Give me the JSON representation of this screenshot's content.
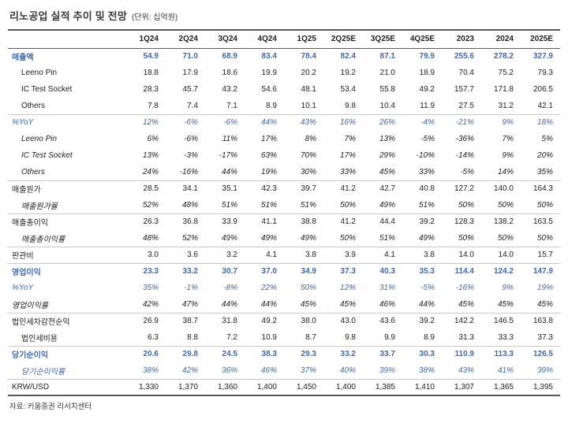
{
  "header": {
    "title": "리노공업 실적 추이 및 전망",
    "unit": "(단위: 십억원)"
  },
  "colors": {
    "accent_blue": "#4169A8",
    "border_dark": "#595959",
    "border_light": "#C9C9C9"
  },
  "table": {
    "columns": [
      "",
      "1Q24",
      "2Q24",
      "3Q24",
      "4Q24",
      "1Q25",
      "2Q25E",
      "3Q25E",
      "4Q25E",
      "2023",
      "2024",
      "2025E"
    ],
    "rows": [
      {
        "label": "매출액",
        "color": "blue",
        "bold": true,
        "indent": false,
        "italic": false,
        "border": null,
        "values": [
          "54.9",
          "71.0",
          "68.9",
          "83.4",
          "78.4",
          "82.4",
          "87.1",
          "79.9",
          "255.6",
          "278.2",
          "327.9"
        ]
      },
      {
        "label": "Leeno Pin",
        "color": "black",
        "bold": false,
        "indent": true,
        "italic": false,
        "border": null,
        "values": [
          "18.8",
          "17.9",
          "18.6",
          "19.9",
          "20.2",
          "19.2",
          "21.0",
          "18.9",
          "70.4",
          "75.2",
          "79.3"
        ]
      },
      {
        "label": "IC Test Socket",
        "color": "black",
        "bold": false,
        "indent": true,
        "italic": false,
        "border": null,
        "values": [
          "28.3",
          "45.7",
          "43.2",
          "54.6",
          "48.1",
          "53.4",
          "55.8",
          "49.2",
          "157.7",
          "171.8",
          "206.5"
        ]
      },
      {
        "label": "Others",
        "color": "black",
        "bold": false,
        "indent": true,
        "italic": false,
        "border": null,
        "values": [
          "7.8",
          "7.4",
          "7.1",
          "8.9",
          "10.1",
          "9.8",
          "10.4",
          "11.9",
          "27.5",
          "31.2",
          "42.1"
        ]
      },
      {
        "label": "%YoY",
        "color": "blue",
        "bold": false,
        "indent": false,
        "italic": true,
        "border": "light",
        "values": [
          "12%",
          "-6%",
          "-6%",
          "44%",
          "43%",
          "16%",
          "26%",
          "-4%",
          "-21%",
          "9%",
          "18%"
        ]
      },
      {
        "label": "Leeno Pin",
        "color": "black",
        "bold": false,
        "indent": true,
        "italic": true,
        "border": null,
        "values": [
          "6%",
          "-6%",
          "11%",
          "17%",
          "8%",
          "7%",
          "13%",
          "-5%",
          "-36%",
          "7%",
          "5%"
        ]
      },
      {
        "label": "IC Test Socket",
        "color": "black",
        "bold": false,
        "indent": true,
        "italic": true,
        "border": null,
        "values": [
          "13%",
          "-3%",
          "-17%",
          "63%",
          "70%",
          "17%",
          "29%",
          "-10%",
          "-14%",
          "9%",
          "20%"
        ]
      },
      {
        "label": "Others",
        "color": "black",
        "bold": false,
        "indent": true,
        "italic": true,
        "border": null,
        "values": [
          "24%",
          "-16%",
          "44%",
          "19%",
          "30%",
          "33%",
          "45%",
          "33%",
          "-5%",
          "14%",
          "35%"
        ]
      },
      {
        "label": "매출원가",
        "color": "black",
        "bold": false,
        "indent": false,
        "italic": false,
        "border": "light",
        "values": [
          "28.5",
          "34.1",
          "35.1",
          "42.3",
          "39.7",
          "41.2",
          "42.7",
          "40.8",
          "127.2",
          "140.0",
          "164.3"
        ]
      },
      {
        "label": "매출원가율",
        "color": "black",
        "bold": false,
        "indent": true,
        "italic": true,
        "border": null,
        "values": [
          "52%",
          "48%",
          "51%",
          "51%",
          "51%",
          "50%",
          "49%",
          "51%",
          "50%",
          "50%",
          "50%"
        ]
      },
      {
        "label": "매출총이익",
        "color": "black",
        "bold": false,
        "indent": false,
        "italic": false,
        "border": "light",
        "values": [
          "26.3",
          "36.8",
          "33.9",
          "41.1",
          "38.8",
          "41.2",
          "44.4",
          "39.2",
          "128.3",
          "138.2",
          "163.5"
        ]
      },
      {
        "label": "매출총이익률",
        "color": "black",
        "bold": false,
        "indent": true,
        "italic": true,
        "border": null,
        "values": [
          "48%",
          "52%",
          "49%",
          "49%",
          "49%",
          "50%",
          "51%",
          "49%",
          "50%",
          "50%",
          "50%"
        ]
      },
      {
        "label": "판관비",
        "color": "black",
        "bold": false,
        "indent": false,
        "italic": false,
        "border": "light",
        "values": [
          "3.0",
          "3.6",
          "3.2",
          "4.1",
          "3.8",
          "3.9",
          "4.1",
          "3.8",
          "14.0",
          "14.0",
          "15.7"
        ]
      },
      {
        "label": "영업이익",
        "color": "blue",
        "bold": true,
        "indent": false,
        "italic": false,
        "border": "light",
        "values": [
          "23.3",
          "33.2",
          "30.7",
          "37.0",
          "34.9",
          "37.3",
          "40.3",
          "35.3",
          "114.4",
          "124.2",
          "147.9"
        ]
      },
      {
        "label": "%YoY",
        "color": "blue",
        "bold": false,
        "indent": false,
        "italic": true,
        "border": null,
        "values": [
          "35%",
          "-1%",
          "-8%",
          "22%",
          "50%",
          "12%",
          "31%",
          "-5%",
          "-16%",
          "9%",
          "19%"
        ]
      },
      {
        "label": "영업이익률",
        "color": "black",
        "bold": false,
        "indent": false,
        "italic": true,
        "border": null,
        "values": [
          "42%",
          "47%",
          "44%",
          "44%",
          "45%",
          "45%",
          "46%",
          "44%",
          "45%",
          "45%",
          "45%"
        ]
      },
      {
        "label": "법인세차감전순익",
        "color": "black",
        "bold": false,
        "indent": false,
        "italic": false,
        "border": "light",
        "values": [
          "26.9",
          "38.7",
          "31.8",
          "49.2",
          "38.0",
          "43.0",
          "43.6",
          "39.2",
          "142.2",
          "146.5",
          "163.8"
        ]
      },
      {
        "label": "법인세비용",
        "color": "black",
        "bold": false,
        "indent": true,
        "italic": false,
        "border": null,
        "values": [
          "6.3",
          "8.8",
          "7.2",
          "10.9",
          "8.7",
          "9.8",
          "9.9",
          "8.9",
          "31.3",
          "33.3",
          "37.3"
        ]
      },
      {
        "label": "당기순이익",
        "color": "blue",
        "bold": true,
        "indent": false,
        "italic": false,
        "border": "light",
        "values": [
          "20.6",
          "29.8",
          "24.5",
          "38.3",
          "29.3",
          "33.2",
          "33.7",
          "30.3",
          "110.9",
          "113.3",
          "126.5"
        ]
      },
      {
        "label": "당기순이익률",
        "color": "blue",
        "bold": false,
        "indent": true,
        "italic": true,
        "border": null,
        "values": [
          "38%",
          "42%",
          "36%",
          "46%",
          "37%",
          "40%",
          "39%",
          "38%",
          "43%",
          "41%",
          "39%"
        ]
      },
      {
        "label": "KRW/USD",
        "color": "black",
        "bold": false,
        "indent": false,
        "italic": false,
        "border": "light",
        "values": [
          "1,330",
          "1,370",
          "1,360",
          "1,400",
          "1,450",
          "1,400",
          "1,385",
          "1,410",
          "1,307",
          "1,365",
          "1,395"
        ]
      }
    ]
  },
  "footer": {
    "source": "자료: 키움증권 리서치센터"
  }
}
